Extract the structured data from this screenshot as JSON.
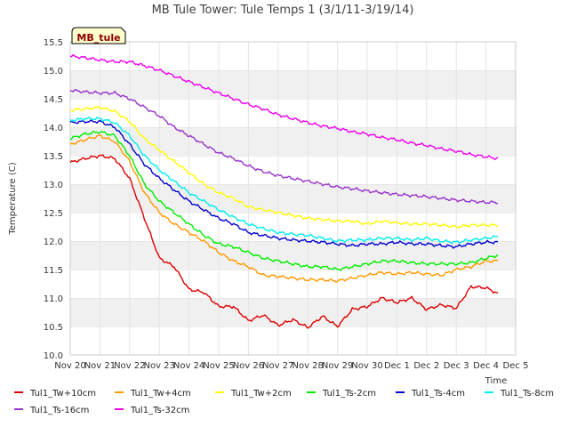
{
  "chart_data": {
    "type": "line",
    "title": "MB Tule Tower: Tule Temps 1 (3/1/11-3/19/14)",
    "xlabel": "Time",
    "ylabel": "Temperature (C)",
    "ylim": [
      10.0,
      15.5
    ],
    "yticks": [
      "10.0",
      "10.5",
      "11.0",
      "11.5",
      "12.0",
      "12.5",
      "13.0",
      "13.5",
      "14.0",
      "14.5",
      "15.0",
      "15.5"
    ],
    "xlim": [
      0,
      15
    ],
    "xticks": [
      "Nov 20",
      "Nov 21",
      "Nov 22",
      "Nov 23",
      "Nov 24",
      "Nov 25",
      "Nov 26",
      "Nov 27",
      "Nov 28",
      "Nov 29",
      "Nov 30",
      "Dec 1",
      "Dec 2",
      "Dec 3",
      "Dec 4",
      "Dec 5"
    ],
    "station_tag": "MB_tule",
    "x": [
      0,
      0.5,
      1,
      1.5,
      2,
      2.5,
      3,
      3.5,
      4,
      4.5,
      5,
      5.5,
      6,
      6.5,
      7,
      7.5,
      8,
      8.5,
      9,
      9.5,
      10,
      10.5,
      11,
      11.5,
      12,
      12.5,
      13,
      13.5,
      14,
      14.4
    ],
    "series": [
      {
        "name": "Tul1_Tw+10cm",
        "color": "#dd0000",
        "values": [
          13.38,
          13.45,
          13.5,
          13.45,
          13.1,
          12.4,
          11.7,
          11.55,
          11.15,
          11.1,
          10.85,
          10.85,
          10.6,
          10.7,
          10.52,
          10.62,
          10.48,
          10.68,
          10.5,
          10.8,
          10.85,
          11.0,
          10.92,
          11.0,
          10.8,
          10.88,
          10.82,
          11.2,
          11.18,
          11.08
        ]
      },
      {
        "name": "Tul1_Tw+4cm",
        "color": "#ff9900",
        "values": [
          13.7,
          13.78,
          13.85,
          13.75,
          13.4,
          12.85,
          12.5,
          12.3,
          12.15,
          12.0,
          11.8,
          11.65,
          11.55,
          11.4,
          11.38,
          11.35,
          11.32,
          11.32,
          11.3,
          11.35,
          11.4,
          11.45,
          11.42,
          11.45,
          11.42,
          11.4,
          11.5,
          11.55,
          11.65,
          11.65
        ]
      },
      {
        "name": "Tul1_Tw+2cm",
        "color": "#ffff00",
        "values": [
          14.3,
          14.32,
          14.35,
          14.28,
          14.1,
          13.8,
          13.6,
          13.4,
          13.2,
          13.0,
          12.85,
          12.75,
          12.6,
          12.55,
          12.5,
          12.45,
          12.4,
          12.38,
          12.35,
          12.35,
          12.3,
          12.35,
          12.32,
          12.3,
          12.3,
          12.28,
          12.25,
          12.28,
          12.28,
          12.28
        ]
      },
      {
        "name": "Tul1_Ts-2cm",
        "color": "#00ee00",
        "values": [
          13.8,
          13.88,
          13.92,
          13.85,
          13.5,
          13.0,
          12.7,
          12.5,
          12.3,
          12.1,
          11.95,
          11.9,
          11.8,
          11.7,
          11.65,
          11.6,
          11.55,
          11.55,
          11.5,
          11.55,
          11.6,
          11.65,
          11.65,
          11.62,
          11.6,
          11.6,
          11.6,
          11.62,
          11.7,
          11.75
        ]
      },
      {
        "name": "Tul1_Ts-4cm",
        "color": "#0000cc",
        "values": [
          14.08,
          14.1,
          14.1,
          14.0,
          13.7,
          13.35,
          13.1,
          12.9,
          12.7,
          12.55,
          12.4,
          12.3,
          12.15,
          12.1,
          12.05,
          12.02,
          12.0,
          11.98,
          11.95,
          11.92,
          11.95,
          11.95,
          11.98,
          11.95,
          11.95,
          11.92,
          11.9,
          11.95,
          11.98,
          11.98
        ]
      },
      {
        "name": "Tul1_Ts-8cm",
        "color": "#00eeee",
        "values": [
          14.12,
          14.15,
          14.15,
          14.08,
          13.85,
          13.5,
          13.25,
          13.05,
          12.85,
          12.7,
          12.55,
          12.42,
          12.3,
          12.22,
          12.15,
          12.12,
          12.1,
          12.05,
          12.0,
          12.02,
          12.02,
          12.05,
          12.05,
          12.02,
          12.05,
          12.0,
          11.98,
          12.02,
          12.05,
          12.08
        ]
      },
      {
        "name": "Tul1_Ts-16cm",
        "color": "#9933cc",
        "values": [
          14.65,
          14.62,
          14.6,
          14.6,
          14.5,
          14.35,
          14.2,
          14.0,
          13.85,
          13.7,
          13.55,
          13.45,
          13.32,
          13.22,
          13.15,
          13.1,
          13.05,
          13.0,
          12.95,
          12.92,
          12.88,
          12.85,
          12.82,
          12.8,
          12.78,
          12.75,
          12.72,
          12.7,
          12.68,
          12.68
        ]
      },
      {
        "name": "Tul1_Ts-32cm",
        "color": "#ee00ee",
        "values": [
          15.25,
          15.22,
          15.18,
          15.15,
          15.15,
          15.08,
          15.0,
          14.9,
          14.8,
          14.7,
          14.6,
          14.5,
          14.4,
          14.32,
          14.22,
          14.15,
          14.08,
          14.02,
          13.98,
          13.92,
          13.88,
          13.82,
          13.78,
          13.72,
          13.68,
          13.62,
          13.58,
          13.52,
          13.48,
          13.45
        ]
      }
    ]
  }
}
